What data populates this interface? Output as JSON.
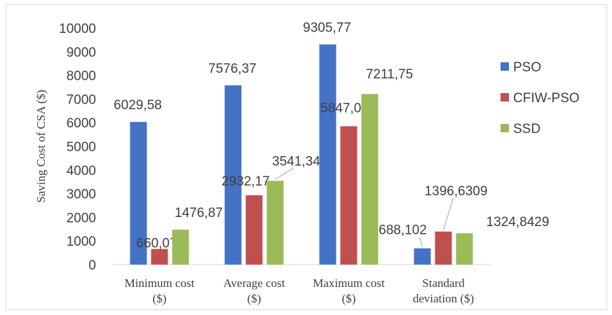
{
  "chart_data": {
    "type": "bar",
    "ylabel": "Saving Cost of CSA ($)",
    "ylim": [
      0,
      10000
    ],
    "yticks": [
      0,
      1000,
      2000,
      3000,
      4000,
      5000,
      6000,
      7000,
      8000,
      9000,
      10000
    ],
    "grid": false,
    "legend_position": "right",
    "categories": [
      [
        "Minimum cost",
        "($)"
      ],
      [
        "Average cost",
        "($)"
      ],
      [
        "Maximum cost",
        "($)"
      ],
      [
        "Standard",
        "deviation ($)"
      ]
    ],
    "series": [
      {
        "name": "PSO",
        "color": "#4472c4",
        "values": [
          6029.58,
          7576.37,
          9305.77,
          688.102
        ],
        "labels": [
          "6029,58",
          "7576,37",
          "9305,77",
          "688,102"
        ]
      },
      {
        "name": "CFIW-PSO",
        "color": "#c0504d",
        "values": [
          660.07,
          2932.17,
          5847.04,
          1396.6309
        ],
        "labels": [
          "660,07",
          "2932,17",
          "5847,04",
          "1396,6309"
        ]
      },
      {
        "name": "SSD",
        "color": "#9bbb59",
        "values": [
          1476.87,
          3541.34,
          7211.75,
          1324.8429
        ],
        "labels": [
          "1476,87",
          "3541,34",
          "7211,75",
          "1324,8429"
        ]
      }
    ]
  }
}
